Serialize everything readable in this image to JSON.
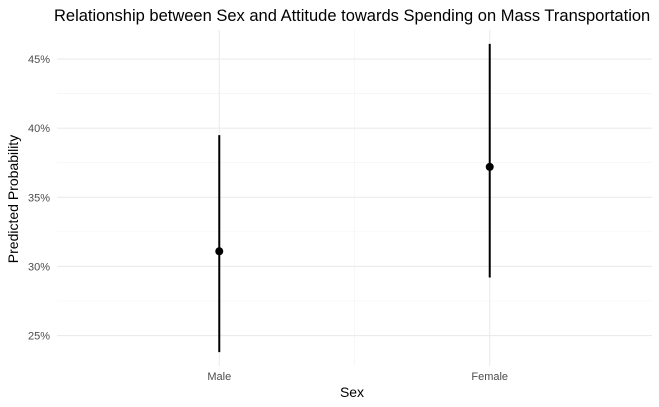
{
  "chart_data": {
    "type": "pointrange",
    "title": "Relationship between Sex and Attitude towards Spending on Mass Transportation",
    "xlabel": "Sex",
    "ylabel": "Predicted Probability",
    "categories": [
      "Male",
      "Female"
    ],
    "points": [
      {
        "category": "Male",
        "estimate": 0.311,
        "lower": 0.238,
        "upper": 0.395
      },
      {
        "category": "Female",
        "estimate": 0.372,
        "lower": 0.292,
        "upper": 0.461
      }
    ],
    "ylim": [
      0.228,
      0.471
    ],
    "yticks": [
      0.25,
      0.3,
      0.35,
      0.4,
      0.45
    ],
    "ytick_labels": [
      "25%",
      "30%",
      "35%",
      "40%",
      "45%"
    ],
    "grid": true,
    "colors": {
      "marks": "#000000",
      "grid_major": "#ebebeb",
      "grid_minor": "#f2f2f2",
      "tick_text": "#4d4d4d"
    }
  }
}
